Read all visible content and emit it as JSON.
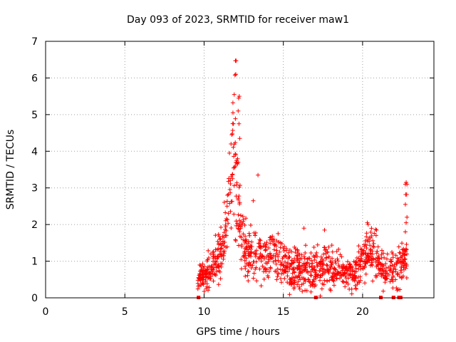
{
  "chart_data": {
    "type": "scatter",
    "title": "Day 093 of 2023, SRMTID for receiver maw1",
    "xlabel": "GPS time / hours",
    "ylabel": "SRMTID / TECUs",
    "xlim": [
      0,
      24.5
    ],
    "ylim": [
      0,
      7
    ],
    "xticks": [
      "0",
      "5",
      "10",
      "15",
      "20"
    ],
    "yticks": [
      "0",
      "1",
      "2",
      "3",
      "4",
      "5",
      "6",
      "7"
    ],
    "grid": true,
    "marker": "plus",
    "color": "#ff0000",
    "envelope": [
      {
        "x": 9.6,
        "y": 0.5,
        "spread": 0.25
      },
      {
        "x": 10.0,
        "y": 0.6,
        "spread": 0.3
      },
      {
        "x": 10.5,
        "y": 0.8,
        "spread": 0.4
      },
      {
        "x": 11.0,
        "y": 1.2,
        "spread": 0.5
      },
      {
        "x": 11.4,
        "y": 2.0,
        "spread": 0.6
      },
      {
        "x": 11.7,
        "y": 3.0,
        "spread": 0.8
      },
      {
        "x": 11.85,
        "y": 4.0,
        "spread": 1.0
      },
      {
        "x": 12.0,
        "y": 3.0,
        "spread": 1.2
      },
      {
        "x": 12.3,
        "y": 2.0,
        "spread": 0.8
      },
      {
        "x": 12.6,
        "y": 1.3,
        "spread": 0.5
      },
      {
        "x": 13.5,
        "y": 1.2,
        "spread": 0.5
      },
      {
        "x": 14.5,
        "y": 1.1,
        "spread": 0.5
      },
      {
        "x": 15.5,
        "y": 0.8,
        "spread": 0.45
      },
      {
        "x": 16.5,
        "y": 0.7,
        "spread": 0.45
      },
      {
        "x": 17.5,
        "y": 0.8,
        "spread": 0.45
      },
      {
        "x": 18.5,
        "y": 0.75,
        "spread": 0.4
      },
      {
        "x": 19.5,
        "y": 0.6,
        "spread": 0.35
      },
      {
        "x": 20.2,
        "y": 1.2,
        "spread": 0.5
      },
      {
        "x": 20.8,
        "y": 1.2,
        "spread": 0.5
      },
      {
        "x": 21.4,
        "y": 0.7,
        "spread": 0.35
      },
      {
        "x": 22.0,
        "y": 0.7,
        "spread": 0.35
      },
      {
        "x": 22.5,
        "y": 1.0,
        "spread": 0.4
      },
      {
        "x": 22.8,
        "y": 1.2,
        "spread": 0.5
      }
    ],
    "highlight_points": [
      {
        "x": 11.98,
        "y": 6.47
      },
      {
        "x": 12.02,
        "y": 6.47
      },
      {
        "x": 11.95,
        "y": 6.08
      },
      {
        "x": 12.0,
        "y": 6.1
      },
      {
        "x": 11.9,
        "y": 5.55
      },
      {
        "x": 12.22,
        "y": 5.5
      },
      {
        "x": 12.18,
        "y": 5.45
      },
      {
        "x": 11.82,
        "y": 5.05
      },
      {
        "x": 12.15,
        "y": 5.1
      },
      {
        "x": 11.75,
        "y": 4.45
      },
      {
        "x": 11.85,
        "y": 4.75
      },
      {
        "x": 12.2,
        "y": 4.75
      },
      {
        "x": 12.25,
        "y": 4.35
      },
      {
        "x": 11.7,
        "y": 4.2
      },
      {
        "x": 11.6,
        "y": 3.95
      },
      {
        "x": 12.15,
        "y": 3.7
      },
      {
        "x": 13.4,
        "y": 3.35
      },
      {
        "x": 13.1,
        "y": 2.65
      },
      {
        "x": 12.25,
        "y": 2.6
      },
      {
        "x": 11.45,
        "y": 2.5
      },
      {
        "x": 22.75,
        "y": 3.15
      },
      {
        "x": 22.7,
        "y": 3.1
      },
      {
        "x": 22.8,
        "y": 3.1
      },
      {
        "x": 22.72,
        "y": 2.82
      },
      {
        "x": 22.78,
        "y": 2.82
      },
      {
        "x": 22.7,
        "y": 2.55
      },
      {
        "x": 22.8,
        "y": 2.2
      },
      {
        "x": 22.75,
        "y": 2.05
      },
      {
        "x": 22.7,
        "y": 1.8
      },
      {
        "x": 20.3,
        "y": 2.05
      },
      {
        "x": 20.35,
        "y": 2.0
      },
      {
        "x": 16.3,
        "y": 1.9
      },
      {
        "x": 17.6,
        "y": 1.85
      }
    ],
    "zero_markers": [
      9.65,
      17.05,
      21.15,
      21.95,
      22.3,
      22.4
    ]
  }
}
